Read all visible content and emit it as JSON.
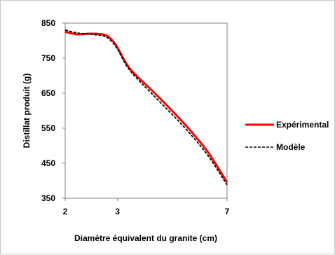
{
  "chart_data": {
    "type": "line",
    "title": "",
    "xlabel": "Diamètre équivalent du granite (cm)",
    "ylabel": "Distillat produit (g)",
    "x_ticks": [
      "2",
      "3",
      "7"
    ],
    "y_ticks": [
      "350",
      "450",
      "550",
      "650",
      "750",
      "850"
    ],
    "ylim": [
      350,
      850
    ],
    "legend_position": "right",
    "grid": false,
    "series": [
      {
        "name": "Expérimental",
        "color": "#ff0000",
        "style": "solid",
        "x": [
          2.0,
          2.2,
          2.45,
          2.7,
          2.85,
          3.0,
          3.3,
          4.0,
          5.0,
          6.0,
          7.0
        ],
        "y": [
          825,
          818,
          820,
          817,
          805,
          780,
          720,
          650,
          565,
          485,
          395
        ]
      },
      {
        "name": "Modèle",
        "color": "#000000",
        "style": "dashed",
        "x": [
          2.0,
          2.2,
          2.45,
          2.7,
          2.85,
          3.0,
          3.3,
          4.0,
          5.0,
          6.0,
          7.0
        ],
        "y": [
          830,
          822,
          818,
          813,
          800,
          775,
          715,
          640,
          555,
          475,
          388
        ]
      }
    ]
  }
}
